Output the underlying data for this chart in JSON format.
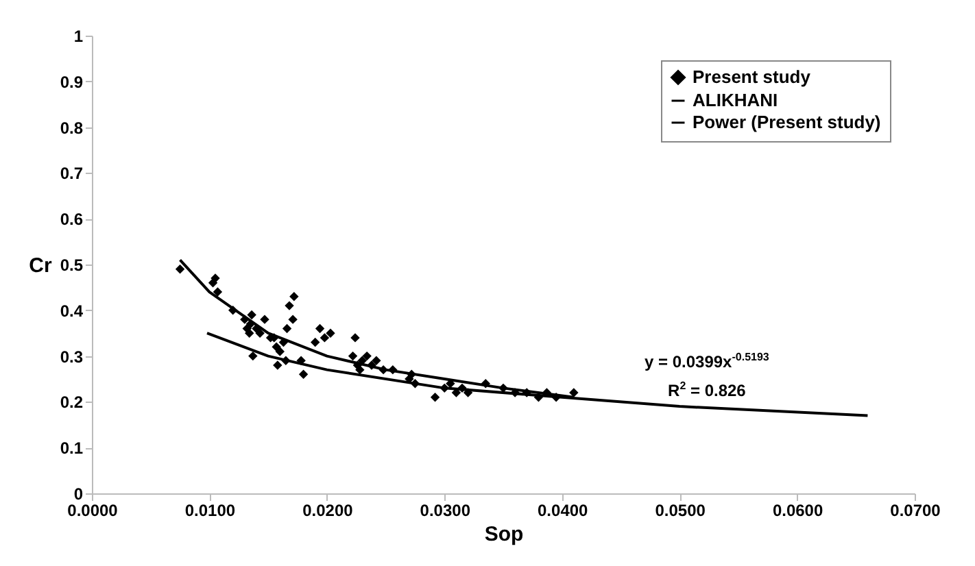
{
  "chart_data": {
    "type": "scatter",
    "xlabel": "Sop",
    "ylabel": "Cr",
    "xlim": [
      0,
      0.07
    ],
    "xticks": [
      {
        "value": 0,
        "label": "0.0000"
      },
      {
        "value": 0.01,
        "label": "0.0100"
      },
      {
        "value": 0.02,
        "label": "0.0200"
      },
      {
        "value": 0.03,
        "label": "0.0300"
      },
      {
        "value": 0.04,
        "label": "0.0400"
      },
      {
        "value": 0.05,
        "label": "0.0500"
      },
      {
        "value": 0.06,
        "label": "0.0600"
      },
      {
        "value": 0.07,
        "label": "0.0700"
      }
    ],
    "ylim": [
      0,
      1
    ],
    "yticks": [
      0,
      0.1,
      0.2,
      0.3,
      0.4,
      0.5,
      0.6,
      0.7,
      0.8,
      0.9,
      1
    ],
    "grid": false,
    "legend": "top right",
    "annotations": [
      "y = 0.0399x$^{-0.5193}$",
      "R$^{2}$ = 0.826"
    ],
    "series": [
      {
        "name": "Present study",
        "type": "scatter",
        "marker": "diamond",
        "color": "#000000",
        "x": [
          0.0075,
          0.0103,
          0.0105,
          0.0107,
          0.012,
          0.013,
          0.0132,
          0.0134,
          0.0135,
          0.0136,
          0.0137,
          0.014,
          0.0143,
          0.0147,
          0.0152,
          0.0155,
          0.0157,
          0.0158,
          0.016,
          0.0163,
          0.0165,
          0.0166,
          0.0168,
          0.0171,
          0.0172,
          0.0178,
          0.018,
          0.019,
          0.0194,
          0.0198,
          0.0203,
          0.0222,
          0.0224,
          0.0226,
          0.0228,
          0.023,
          0.0234,
          0.0238,
          0.0242,
          0.0248,
          0.0256,
          0.027,
          0.0272,
          0.0275,
          0.0292,
          0.03,
          0.0305,
          0.031,
          0.0315,
          0.032,
          0.0335,
          0.035,
          0.036,
          0.037,
          0.038,
          0.0387,
          0.0395,
          0.041
        ],
        "values": [
          0.49,
          0.46,
          0.47,
          0.44,
          0.4,
          0.38,
          0.36,
          0.35,
          0.37,
          0.39,
          0.3,
          0.36,
          0.35,
          0.38,
          0.34,
          0.34,
          0.32,
          0.28,
          0.31,
          0.33,
          0.29,
          0.36,
          0.41,
          0.38,
          0.43,
          0.29,
          0.26,
          0.33,
          0.36,
          0.34,
          0.35,
          0.3,
          0.34,
          0.28,
          0.27,
          0.29,
          0.3,
          0.28,
          0.29,
          0.27,
          0.27,
          0.25,
          0.26,
          0.24,
          0.21,
          0.23,
          0.24,
          0.22,
          0.23,
          0.22,
          0.24,
          0.23,
          0.22,
          0.22,
          0.21,
          0.22,
          0.21,
          0.22
        ]
      },
      {
        "name": "ALIKHANI",
        "type": "line",
        "marker": "none",
        "line_style": "solid",
        "color": "#000000",
        "x": [
          0.0098,
          0.015,
          0.02,
          0.03,
          0.04,
          0.05,
          0.066
        ],
        "values": [
          0.35,
          0.3,
          0.27,
          0.23,
          0.21,
          0.19,
          0.17
        ]
      },
      {
        "name": "Power (Present study)",
        "type": "line",
        "marker": "none",
        "line_style": "solid",
        "color": "#000000",
        "x": [
          0.0075,
          0.01,
          0.015,
          0.02,
          0.025,
          0.03,
          0.035,
          0.041
        ],
        "values": [
          0.51,
          0.44,
          0.35,
          0.3,
          0.27,
          0.25,
          0.23,
          0.21
        ]
      }
    ]
  }
}
